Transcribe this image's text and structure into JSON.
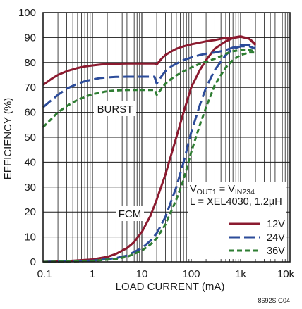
{
  "chart_data": {
    "type": "line",
    "x_scale": "log",
    "xlabel": "LOAD CURRENT (mA)",
    "ylabel": "EFFICIENCY (%)",
    "xlim": [
      0.1,
      10000
    ],
    "ylim": [
      0,
      100
    ],
    "grid": true,
    "x_tick_labels": [
      "0.1",
      "1",
      "10",
      "100",
      "1k",
      "10k"
    ],
    "y_tick_labels": [
      "0",
      "10",
      "20",
      "30",
      "40",
      "50",
      "60",
      "70",
      "80",
      "90",
      "100"
    ],
    "annotations": {
      "burst": "BURST",
      "fcm": "FCM",
      "condition_vout": "V",
      "condition_vout_sub": "OUT1",
      "condition_eq": " = V",
      "condition_vin_sub": "IN234",
      "condition_inductor": "L = XEL4030, 1.2µH"
    },
    "figure_id": "8692S G04",
    "colors": {
      "12V": "#8b1a2f",
      "24V": "#2c4c9a",
      "36V": "#2e7d32"
    },
    "series": [
      {
        "name": "12V",
        "mode": "BURST",
        "x": [
          0.1,
          0.15,
          0.2,
          0.3,
          0.5,
          0.7,
          1,
          1.5,
          2,
          3,
          5,
          7,
          10,
          15,
          18,
          20,
          25,
          30,
          40,
          50,
          70,
          100,
          150,
          200,
          300,
          400,
          500,
          700,
          1000,
          1500,
          2000
        ],
        "y": [
          71,
          73.5,
          75,
          76.5,
          77.8,
          78.4,
          78.8,
          79.2,
          79.3,
          79.5,
          79.6,
          79.6,
          79.6,
          79.6,
          79.6,
          79.2,
          81.5,
          83,
          84.5,
          85.5,
          86.5,
          87.3,
          88,
          88.5,
          89,
          89.5,
          89.8,
          90,
          90.5,
          89.5,
          87
        ]
      },
      {
        "name": "12V",
        "mode": "FCM",
        "x": [
          0.1,
          0.3,
          1,
          2,
          3,
          5,
          7,
          10,
          15,
          20,
          30,
          50,
          70,
          100,
          150,
          200,
          300,
          500,
          700,
          1000,
          1500,
          2000
        ],
        "y": [
          0,
          0.3,
          1,
          2,
          3.2,
          5.5,
          8,
          12,
          18.5,
          25,
          35,
          50,
          60,
          70,
          77,
          81,
          85.5,
          88.5,
          89.8,
          90.3,
          89.5,
          87.5
        ]
      },
      {
        "name": "24V",
        "mode": "BURST",
        "x": [
          0.1,
          0.15,
          0.2,
          0.3,
          0.5,
          0.7,
          1,
          1.5,
          2,
          3,
          5,
          7,
          10,
          15,
          18,
          20,
          25,
          30,
          40,
          50,
          70,
          100,
          150,
          200,
          300,
          400,
          500,
          700,
          1000,
          1500,
          2000
        ],
        "y": [
          62,
          65,
          67,
          69.5,
          71.5,
          72.5,
          73.2,
          73.8,
          74,
          74.2,
          74.3,
          74.3,
          74.3,
          74.3,
          74.3,
          71.5,
          74.5,
          76.5,
          78.5,
          79.5,
          81,
          82,
          83,
          83.5,
          84,
          84.5,
          85,
          86,
          87,
          87,
          86
        ]
      },
      {
        "name": "24V",
        "mode": "FCM",
        "x": [
          0.1,
          0.5,
          1,
          3,
          5,
          10,
          15,
          20,
          30,
          50,
          70,
          100,
          150,
          200,
          300,
          500,
          700,
          1000,
          1500,
          2000
        ],
        "y": [
          0,
          0.3,
          0.5,
          1.5,
          2.5,
          5.5,
          8.5,
          11.5,
          18,
          30,
          40,
          52,
          63,
          70,
          77,
          83,
          85.5,
          86.5,
          86.5,
          85.5
        ]
      },
      {
        "name": "36V",
        "mode": "BURST",
        "x": [
          0.1,
          0.15,
          0.2,
          0.3,
          0.5,
          0.7,
          1,
          1.5,
          2,
          3,
          5,
          7,
          10,
          15,
          18,
          20,
          25,
          30,
          40,
          50,
          70,
          100,
          150,
          200,
          300,
          400,
          500,
          700,
          1000,
          1500,
          2000
        ],
        "y": [
          54,
          57.5,
          60,
          62.5,
          65,
          66.2,
          67.3,
          68,
          68.5,
          68.8,
          69,
          69,
          69,
          69,
          69,
          67,
          69.5,
          71.5,
          73.5,
          74.8,
          76.5,
          78,
          79.5,
          80.3,
          81.5,
          82.5,
          83.5,
          84.5,
          85,
          85,
          84.5
        ]
      },
      {
        "name": "36V",
        "mode": "FCM",
        "x": [
          0.1,
          0.5,
          1,
          3,
          5,
          10,
          15,
          20,
          30,
          50,
          70,
          100,
          150,
          200,
          300,
          500,
          700,
          1000,
          1500,
          2000
        ],
        "y": [
          0,
          0.2,
          0.4,
          1.2,
          2,
          4.5,
          7,
          9.5,
          15,
          25,
          33,
          44,
          55,
          62,
          71,
          78,
          81,
          83,
          84,
          84
        ]
      }
    ]
  }
}
